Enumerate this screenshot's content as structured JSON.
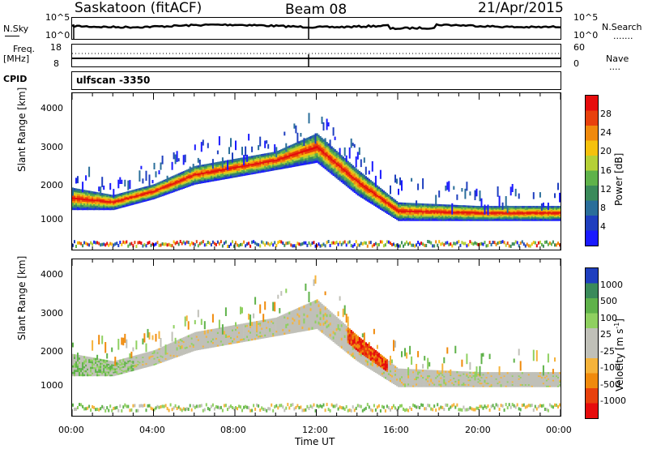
{
  "header": {
    "station": "Saskatoon (fitACF)",
    "beam": "Beam 08",
    "date": "21/Apr/2015"
  },
  "nsky_panel": {
    "left_label": "N.Sky",
    "right_label": "N.Search",
    "right_legend": ".......",
    "ticks_left": [
      "10^5",
      "10^0"
    ],
    "ticks_right": [
      "10^5",
      "10^0"
    ]
  },
  "freq_panel": {
    "left_label_1": "Freq.",
    "left_label_2": "[MHz]",
    "left_ticks": [
      "18",
      "8"
    ],
    "right_label": "Nave",
    "right_legend": "....",
    "right_ticks": [
      "60",
      "0"
    ]
  },
  "cpid_panel": {
    "label": "CPID",
    "value": "ulfscan -3350"
  },
  "colors": {
    "power": [
      "#1a1aff",
      "#1f3fbf",
      "#2a6e9a",
      "#3a8a5a",
      "#5fb24a",
      "#b5d036",
      "#f5c10c",
      "#f08a0c",
      "#e8410c",
      "#e60c0c"
    ],
    "velocity": [
      "#e60c0c",
      "#e8410c",
      "#f08a0c",
      "#f5b33a",
      "#c0c0b8",
      "#c0c0b8",
      "#8fd060",
      "#5fb24a",
      "#3a8a5a",
      "#1f3fbf"
    ]
  },
  "chart_data": [
    {
      "type": "heatmap",
      "name": "power",
      "ylabel": "Slant Range [km]",
      "yticks": [
        "4000",
        "3000",
        "2000",
        "1000"
      ],
      "ylim": [
        200,
        4500
      ],
      "xlim": [
        "00:00",
        "24:00"
      ],
      "colorbar_label": "Power [dB]",
      "colorbar_ticks": [
        "28",
        "24",
        "20",
        "16",
        "12",
        "8",
        "4"
      ],
      "colorbar_range": [
        0,
        30
      ],
      "main_echo_band_km": [
        {
          "t": 0,
          "lo": 1300,
          "hi": 1900
        },
        {
          "t": 2,
          "lo": 1300,
          "hi": 1700
        },
        {
          "t": 4,
          "lo": 1600,
          "hi": 2000
        },
        {
          "t": 6,
          "lo": 2000,
          "hi": 2500
        },
        {
          "t": 8,
          "lo": 2200,
          "hi": 2700
        },
        {
          "t": 10,
          "lo": 2400,
          "hi": 2900
        },
        {
          "t": 12,
          "lo": 2600,
          "hi": 3400
        },
        {
          "t": 14,
          "lo": 1700,
          "hi": 2400
        },
        {
          "t": 16,
          "lo": 1000,
          "hi": 1500
        },
        {
          "t": 20,
          "lo": 1000,
          "hi": 1400
        },
        {
          "t": 24,
          "lo": 1000,
          "hi": 1400
        }
      ]
    },
    {
      "type": "heatmap",
      "name": "velocity",
      "ylabel": "Slant Range [km]",
      "xlabel": "Time UT",
      "yticks": [
        "4000",
        "3000",
        "2000",
        "1000"
      ],
      "xticks": [
        "00:00",
        "04:00",
        "08:00",
        "12:00",
        "16:00",
        "20:00",
        "00:00"
      ],
      "ylim": [
        200,
        4500
      ],
      "colorbar_label": "Velocity [m s",
      "colorbar_sup": "-1",
      "colorbar_suffix": "]",
      "colorbar_ticks": [
        "1000",
        "500",
        "100",
        "25",
        "-25",
        "-100",
        "-500",
        "-1000"
      ],
      "colorbar_range": [
        -1000,
        1000
      ]
    }
  ]
}
